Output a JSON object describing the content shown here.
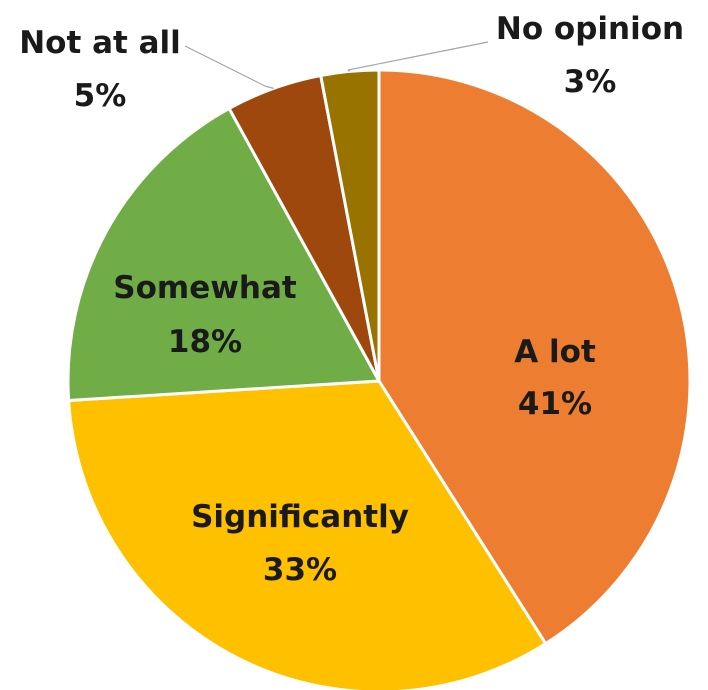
{
  "chart_data": {
    "type": "pie",
    "title": "",
    "start_angle_deg": 0,
    "direction": "clockwise",
    "slices": [
      {
        "name": "A lot",
        "value": 41,
        "label": "41%",
        "color": "#ED7D31"
      },
      {
        "name": "Significantly",
        "value": 33,
        "label": "33%",
        "color": "#FFC000"
      },
      {
        "name": "Somewhat",
        "value": 18,
        "label": "18%",
        "color": "#70AD47"
      },
      {
        "name": "Not at all",
        "value": 5,
        "label": "5%",
        "color": "#9E480E"
      },
      {
        "name": "No opinion",
        "value": 3,
        "label": "3%",
        "color": "#997300"
      }
    ],
    "legend": "none",
    "data_labels": "category and percentage"
  }
}
